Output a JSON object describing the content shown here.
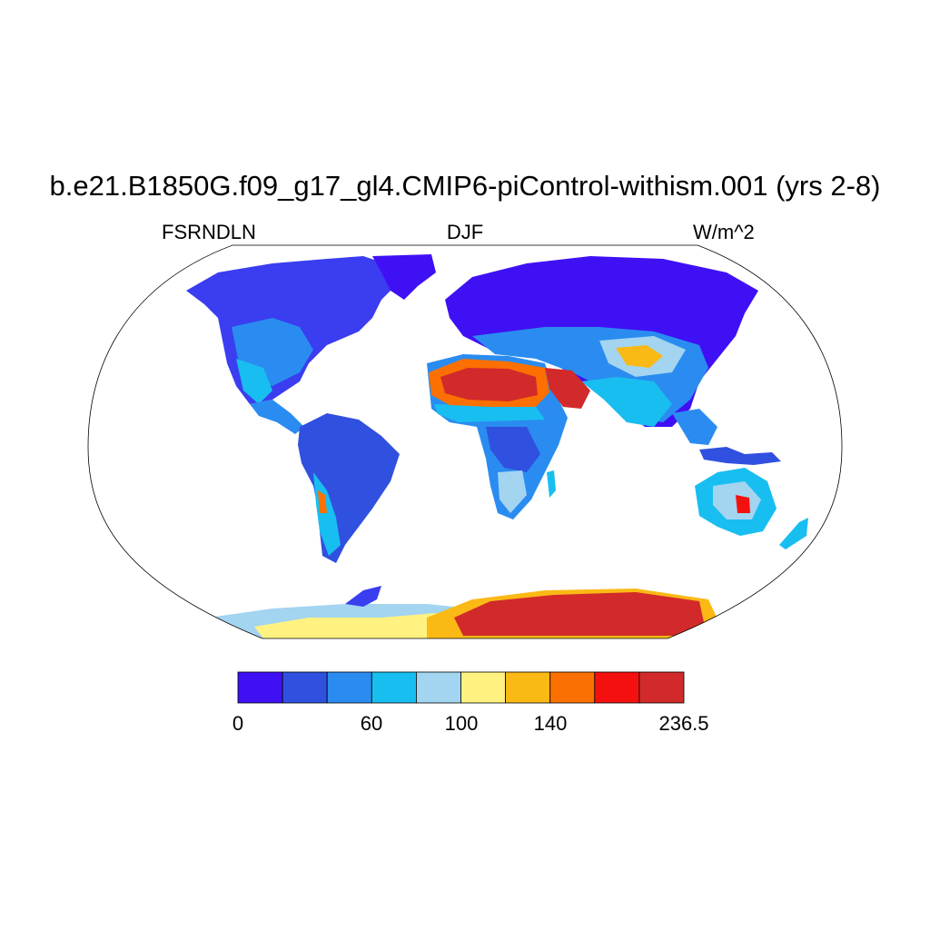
{
  "title": "b.e21.B1850G.f09_g17_gl4.CMIP6-piControl-withism.001 (yrs 2-8)",
  "variable": "FSRNDLN",
  "season": "DJF",
  "units": "W/m^2",
  "colorbar": {
    "colors": [
      "#4010f5",
      "#3050e0",
      "#2a8cf0",
      "#18bef0",
      "#a3d4f0",
      "#fff280",
      "#fbb916",
      "#fb7000",
      "#f51010",
      "#d22a2a"
    ],
    "labels": [
      "0",
      "60",
      "100",
      "140",
      "236.5"
    ]
  },
  "map": {
    "projection": "Robinson",
    "ocean_color": "#ffffff",
    "regions": [
      {
        "name": "Sahara",
        "level": "high"
      },
      {
        "name": "Arabian Peninsula",
        "level": "high"
      },
      {
        "name": "Tibetan Plateau",
        "level": "medium-high"
      },
      {
        "name": "Antarctica",
        "level": "highest"
      },
      {
        "name": "Central Australia",
        "level": "medium-high"
      },
      {
        "name": "Northern high latitudes",
        "level": "lowest"
      }
    ]
  }
}
